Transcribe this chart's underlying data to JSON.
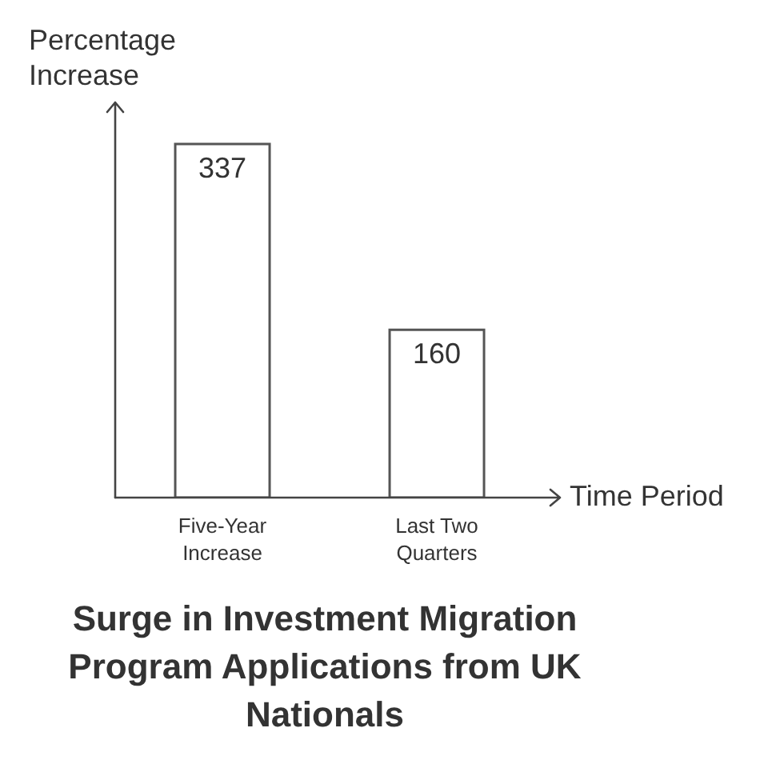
{
  "chart_data": {
    "type": "bar",
    "title": "Surge in Investment Migration Program Applications from UK Nationals",
    "xlabel": "Time Period",
    "ylabel": "Percentage Increase",
    "categories": [
      "Five-Year Increase",
      "Last Two Quarters"
    ],
    "values": [
      337,
      160
    ],
    "color": "#ffffff",
    "data_labels": true,
    "grid": false,
    "legend": false
  }
}
